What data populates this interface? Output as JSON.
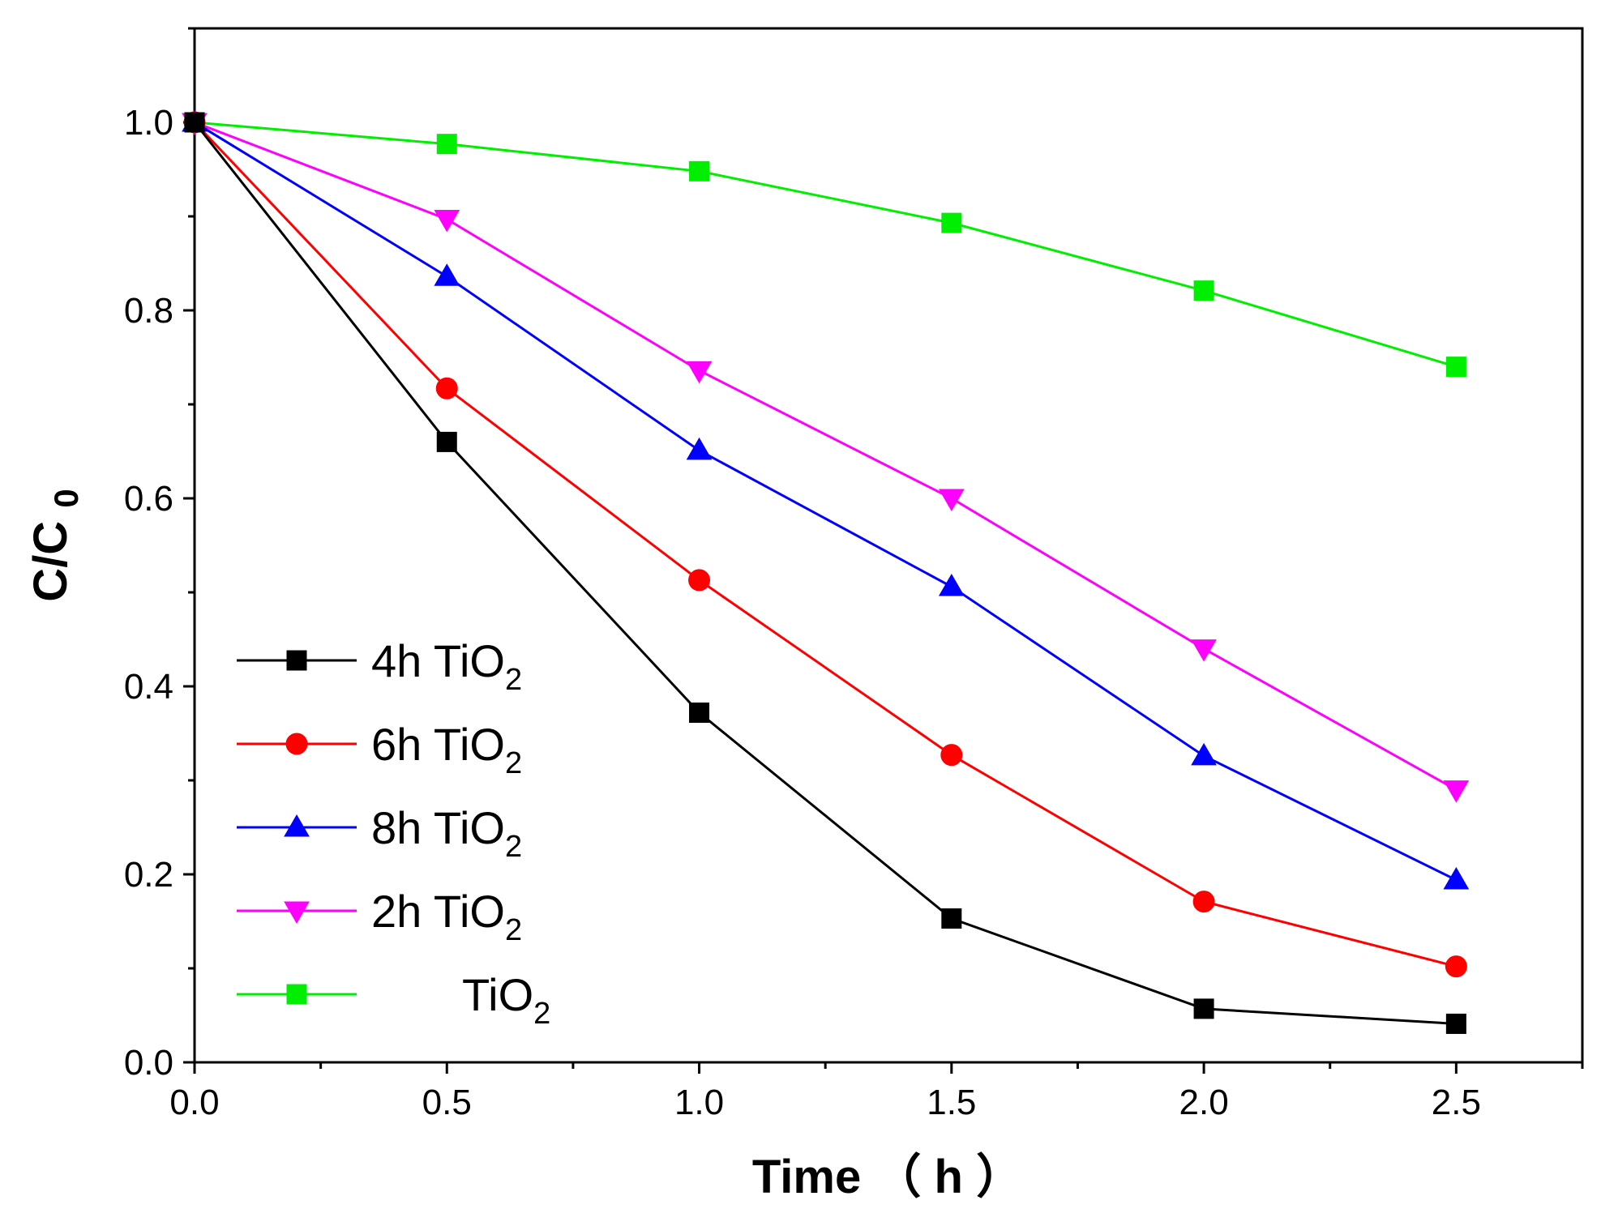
{
  "chart_data": {
    "type": "line",
    "title": "",
    "xlabel_main": "Time",
    "xlabel_unit_open": "（",
    "xlabel_unit": "h",
    "xlabel_unit_close": "）",
    "ylabel_main": "C/C",
    "ylabel_sub": "0",
    "xlim": [
      0,
      2.75
    ],
    "ylim": [
      0,
      1.1
    ],
    "x_ticks": [
      "0.0",
      "0.5",
      "1.0",
      "1.5",
      "2.0",
      "2.5"
    ],
    "x_tick_values": [
      0,
      0.5,
      1.0,
      1.5,
      2.0,
      2.5
    ],
    "y_ticks": [
      "0.0",
      "0.2",
      "0.4",
      "0.6",
      "0.8",
      "1.0"
    ],
    "y_tick_values": [
      0,
      0.2,
      0.4,
      0.6,
      0.8,
      1.0
    ],
    "x": [
      0,
      0.5,
      1.0,
      1.5,
      2.0,
      2.5
    ],
    "legend_position": "lower-left",
    "series": [
      {
        "name": "4h TiO",
        "name_sub": "2",
        "color": "#000000",
        "marker": "square",
        "values": [
          1.0,
          0.66,
          0.372,
          0.153,
          0.057,
          0.041
        ]
      },
      {
        "name": "6h TiO",
        "name_sub": "2",
        "color": "#ff0000",
        "marker": "circle",
        "values": [
          1.0,
          0.717,
          0.513,
          0.327,
          0.171,
          0.102
        ]
      },
      {
        "name": "8h TiO",
        "name_sub": "2",
        "color": "#0000ff",
        "marker": "triangle-up",
        "values": [
          1.0,
          0.836,
          0.651,
          0.506,
          0.326,
          0.194
        ]
      },
      {
        "name": "2h TiO",
        "name_sub": "2",
        "color": "#ff00ff",
        "marker": "triangle-down",
        "values": [
          1.0,
          0.897,
          0.736,
          0.6,
          0.44,
          0.29
        ]
      },
      {
        "name": "TiO",
        "name_sub": "2",
        "color": "#00ee00",
        "marker": "square",
        "values": [
          1.0,
          0.977,
          0.948,
          0.893,
          0.821,
          0.74
        ]
      }
    ]
  }
}
